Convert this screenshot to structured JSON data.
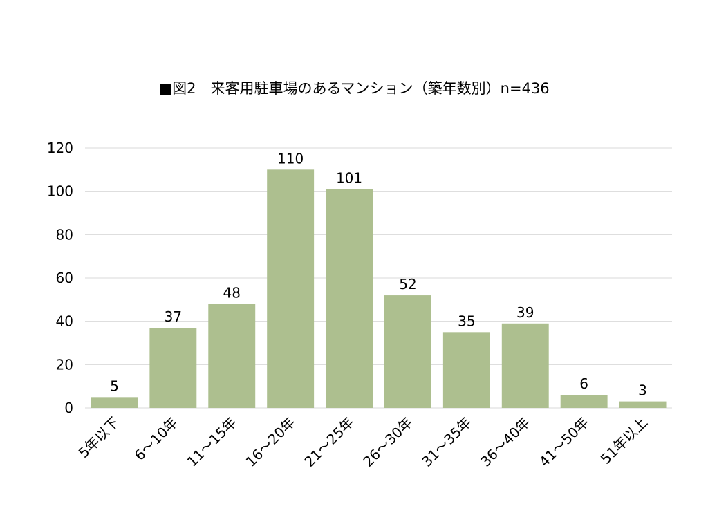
{
  "chart_data": {
    "type": "bar",
    "title": "■図2　来客用駐車場のあるマンション（築年数別）n=436",
    "xlabel": "",
    "ylabel": "",
    "categories": [
      "5年以下",
      "6～10年",
      "11～15年",
      "16～20年",
      "21～25年",
      "26～30年",
      "31～35年",
      "36～40年",
      "41～50年",
      "51年以上"
    ],
    "values": [
      5,
      37,
      48,
      110,
      101,
      52,
      35,
      39,
      6,
      3
    ],
    "ylim": [
      0,
      120
    ],
    "yticks": [
      0,
      20,
      40,
      60,
      80,
      100,
      120
    ],
    "grid": true,
    "legend": "none",
    "bar_color": "#adbf8f"
  }
}
